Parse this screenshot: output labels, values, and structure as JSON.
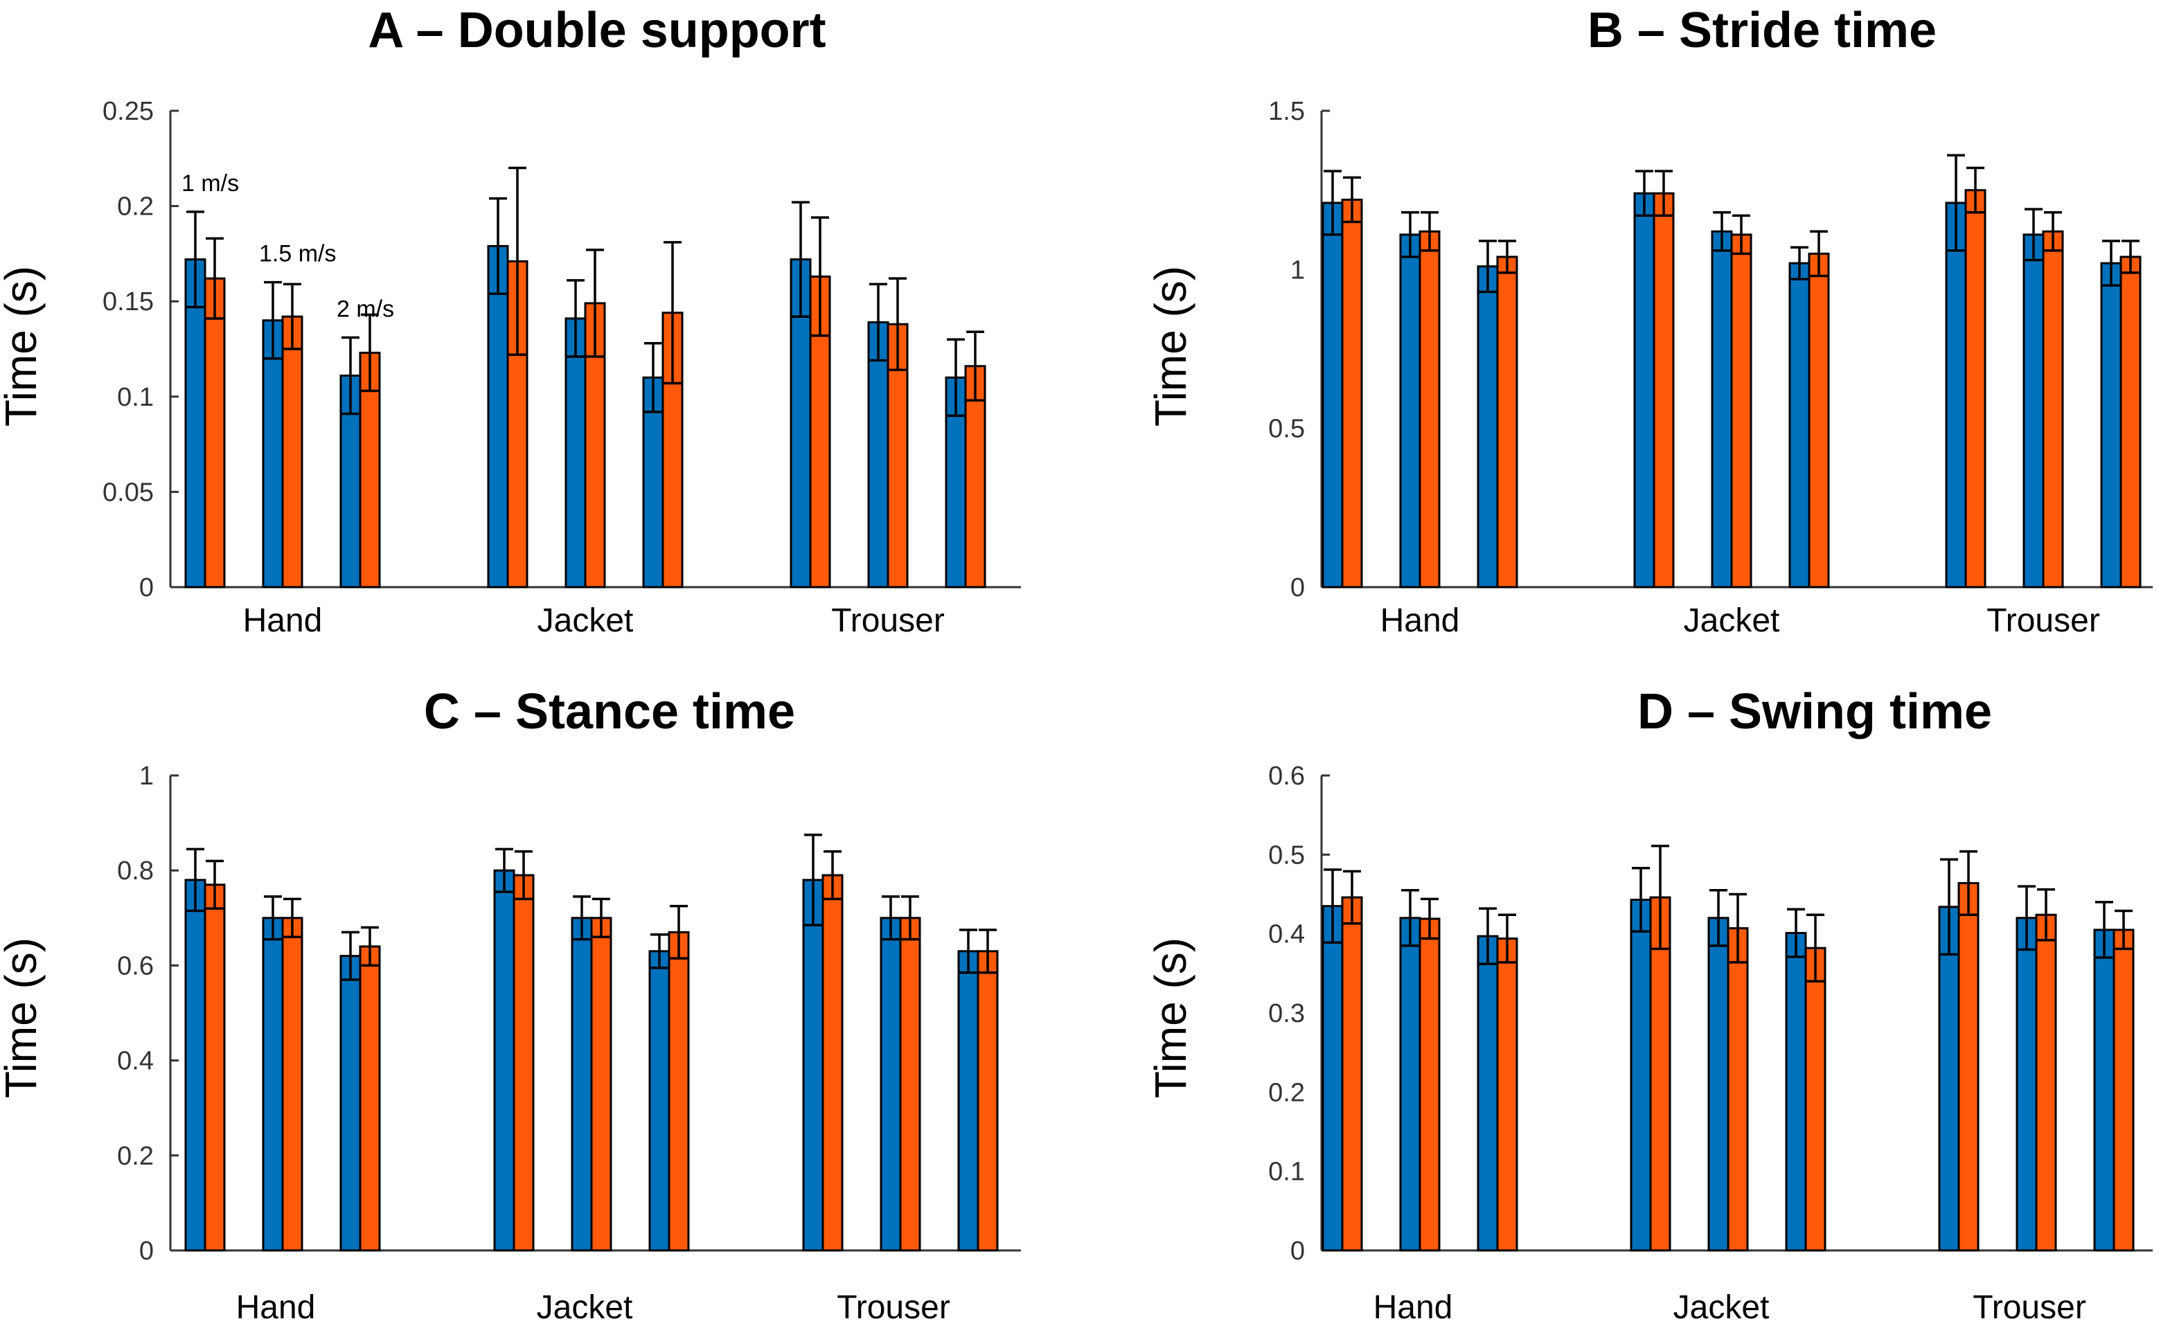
{
  "chart_data": [
    {
      "type": "bar",
      "title": "A – Double support",
      "ylabel": "Time (s)",
      "xlabel": "",
      "ylim": [
        0,
        0.25
      ],
      "yticks": [
        0,
        0.05,
        0.1,
        0.15,
        0.2,
        0.25
      ],
      "ytick_labels": [
        "0",
        "0.05",
        "0.1",
        "0.15",
        "0.2",
        "0.25"
      ],
      "groups": [
        "Hand",
        "Jacket",
        "Trouser"
      ],
      "speeds": [
        "1 m/s",
        "1.5 m/s",
        "2 m/s"
      ],
      "series": [
        {
          "name": "blue",
          "color": "#0072BD",
          "values": [
            [
              0.172,
              0.14,
              0.111
            ],
            [
              0.179,
              0.141,
              0.11
            ],
            [
              0.172,
              0.139,
              0.11
            ]
          ],
          "errors": [
            [
              0.025,
              0.02,
              0.02
            ],
            [
              0.025,
              0.02,
              0.018
            ],
            [
              0.03,
              0.02,
              0.02
            ]
          ]
        },
        {
          "name": "orange",
          "color": "#FF5A0A",
          "values": [
            [
              0.162,
              0.142,
              0.123
            ],
            [
              0.171,
              0.149,
              0.144
            ],
            [
              0.163,
              0.138,
              0.116
            ]
          ],
          "errors": [
            [
              0.021,
              0.017,
              0.02
            ],
            [
              0.049,
              0.028,
              0.037
            ],
            [
              0.031,
              0.024,
              0.018
            ]
          ]
        }
      ]
    },
    {
      "type": "bar",
      "title": "B – Stride time",
      "ylabel": "Time (s)",
      "xlabel": "",
      "ylim": [
        0,
        1.5
      ],
      "yticks": [
        0,
        0.5,
        1,
        1.5
      ],
      "ytick_labels": [
        "0",
        "0.5",
        "1",
        "1.5"
      ],
      "groups": [
        "Hand",
        "Jacket",
        "Trouser"
      ],
      "series": [
        {
          "name": "blue",
          "color": "#0072BD",
          "values": [
            [
              1.21,
              1.11,
              1.01
            ],
            [
              1.24,
              1.12,
              1.02
            ],
            [
              1.21,
              1.11,
              1.02
            ]
          ],
          "errors": [
            [
              0.1,
              0.07,
              0.08
            ],
            [
              0.07,
              0.06,
              0.05
            ],
            [
              0.15,
              0.08,
              0.07
            ]
          ]
        },
        {
          "name": "orange",
          "color": "#FF5A0A",
          "values": [
            [
              1.22,
              1.12,
              1.04
            ],
            [
              1.24,
              1.11,
              1.05
            ],
            [
              1.25,
              1.12,
              1.04
            ]
          ],
          "errors": [
            [
              0.07,
              0.06,
              0.05
            ],
            [
              0.07,
              0.06,
              0.07
            ],
            [
              0.07,
              0.06,
              0.05
            ]
          ]
        }
      ]
    },
    {
      "type": "bar",
      "title": "C – Stance time",
      "ylabel": "Time (s)",
      "xlabel": "",
      "ylim": [
        0,
        1
      ],
      "yticks": [
        0,
        0.2,
        0.4,
        0.6,
        0.8,
        1
      ],
      "ytick_labels": [
        "0",
        "0.2",
        "0.4",
        "0.6",
        "0.8",
        "1"
      ],
      "groups": [
        "Hand",
        "Jacket",
        "Trouser"
      ],
      "series": [
        {
          "name": "blue",
          "color": "#0072BD",
          "values": [
            [
              0.78,
              0.7,
              0.62
            ],
            [
              0.8,
              0.7,
              0.63
            ],
            [
              0.78,
              0.7,
              0.63
            ]
          ],
          "errors": [
            [
              0.065,
              0.045,
              0.05
            ],
            [
              0.045,
              0.045,
              0.035
            ],
            [
              0.095,
              0.045,
              0.045
            ]
          ]
        },
        {
          "name": "orange",
          "color": "#FF5A0A",
          "values": [
            [
              0.77,
              0.7,
              0.64
            ],
            [
              0.79,
              0.7,
              0.67
            ],
            [
              0.79,
              0.7,
              0.63
            ]
          ],
          "errors": [
            [
              0.05,
              0.04,
              0.04
            ],
            [
              0.05,
              0.04,
              0.055
            ],
            [
              0.05,
              0.045,
              0.045
            ]
          ]
        }
      ]
    },
    {
      "type": "bar",
      "title": "D – Swing time",
      "ylabel": "Time (s)",
      "xlabel": "",
      "ylim": [
        0,
        0.6
      ],
      "yticks": [
        0,
        0.1,
        0.2,
        0.3,
        0.4,
        0.5,
        0.6
      ],
      "ytick_labels": [
        "0",
        "0.1",
        "0.2",
        "0.3",
        "0.4",
        "0.5",
        "0.6"
      ],
      "groups": [
        "Hand",
        "Jacket",
        "Trouser"
      ],
      "series": [
        {
          "name": "blue",
          "color": "#0072BD",
          "values": [
            [
              0.435,
              0.42,
              0.397
            ],
            [
              0.443,
              0.42,
              0.401
            ],
            [
              0.434,
              0.42,
              0.405
            ]
          ],
          "errors": [
            [
              0.046,
              0.035,
              0.035
            ],
            [
              0.04,
              0.035,
              0.03
            ],
            [
              0.06,
              0.04,
              0.035
            ]
          ]
        },
        {
          "name": "orange",
          "color": "#FF5A0A",
          "values": [
            [
              0.446,
              0.419,
              0.394
            ],
            [
              0.446,
              0.407,
              0.382
            ],
            [
              0.464,
              0.424,
              0.405
            ]
          ],
          "errors": [
            [
              0.033,
              0.025,
              0.03
            ],
            [
              0.065,
              0.043,
              0.042
            ],
            [
              0.04,
              0.032,
              0.024
            ]
          ]
        }
      ]
    }
  ]
}
